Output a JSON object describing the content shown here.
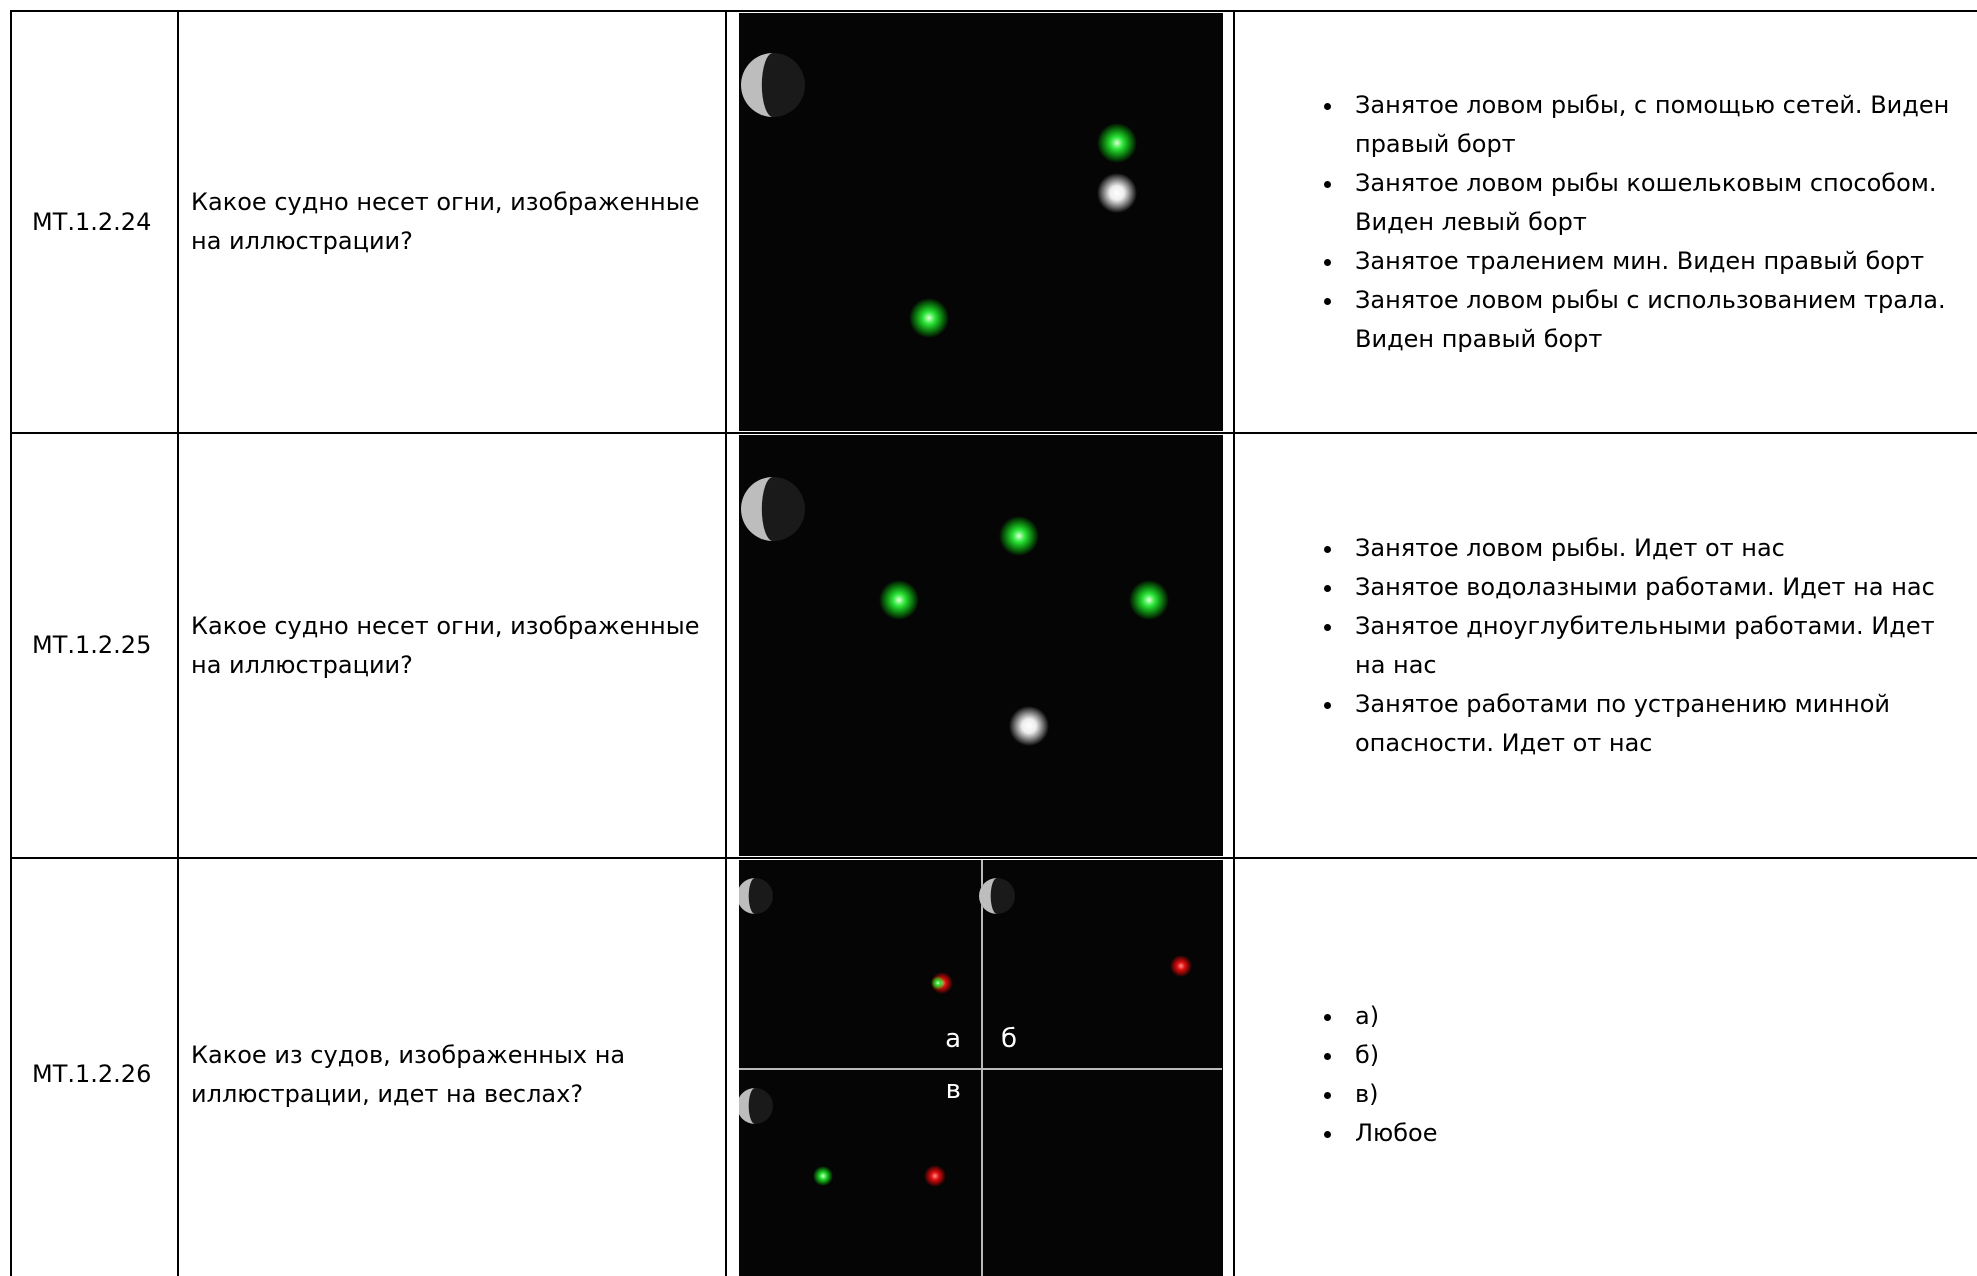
{
  "table": {
    "rows": [
      {
        "id": "МТ.1.2.24",
        "question": "Какое судно несет огни, изображенные на иллюстрации?",
        "options": [
          "Занятое ловом рыбы, с помощью сетей. Виден правый борт",
          "Занятое ловом рыбы кошельковым способом. Виден левый борт",
          "Занятое тралением мин. Виден правый борт",
          "Занятое ловом рыбы с использованием трала. Виден правый борт"
        ]
      },
      {
        "id": "МТ.1.2.25",
        "question": "Какое судно несет огни, изображенные на иллюстрации?",
        "options": [
          "Занятое ловом рыбы. Идет от нас",
          "Занятое водолазными работами. Идет на нас",
          "Занятое дноуглубительными работами. Идет на нас",
          "Занятое работами по устранению минной опасности. Идет от нас"
        ]
      },
      {
        "id": "МТ.1.2.26",
        "question": "Какое из судов, изображенных на иллюстрации, идет на веслах?",
        "options": [
          "а)",
          "б)",
          "в)",
          "Любое"
        ],
        "image_labels": [
          "а",
          "б",
          "в"
        ]
      }
    ]
  }
}
